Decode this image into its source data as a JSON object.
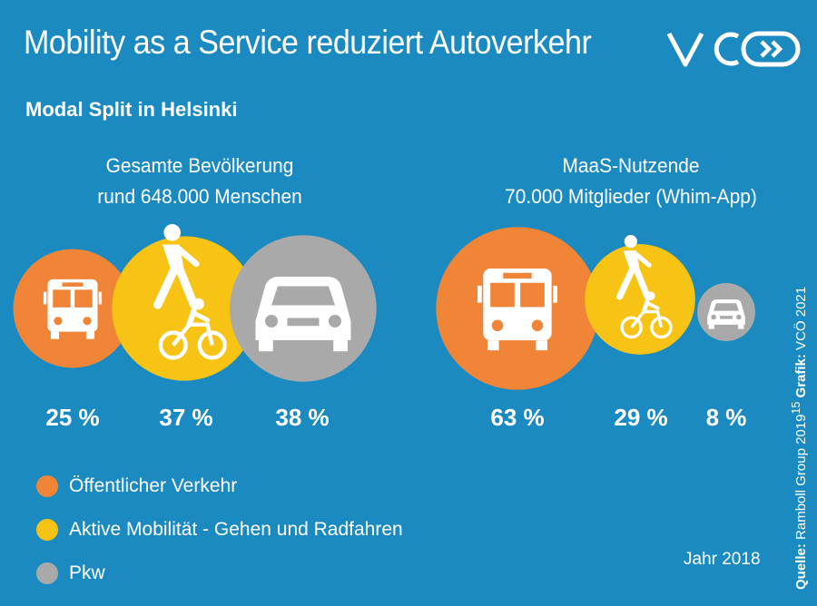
{
  "title": "Mobility as a Service reduziert Autoverkehr",
  "subtitle": "Modal Split in Helsinki",
  "colors": {
    "background": "#1a8ac0",
    "oeffentlich": "#f08537",
    "aktiv": "#f7c314",
    "pkw": "#a9a9a9"
  },
  "chart_data": [
    {
      "type": "bubble",
      "title": "Gesamte Bevölkerung",
      "subtitle": "rund 648.000 Menschen",
      "categories": [
        "Öffentlicher Verkehr",
        "Aktive Mobilität - Gehen und Radfahren",
        "Pkw"
      ],
      "values": [
        25,
        37,
        38
      ],
      "labels": [
        "25 %",
        "37 %",
        "38 %"
      ],
      "icons": [
        "bus-icon",
        "walk-bike-icon",
        "car-icon"
      ]
    },
    {
      "type": "bubble",
      "title": "MaaS-Nutzende",
      "subtitle": "70.000 Mitglieder (Whim-App)",
      "categories": [
        "Öffentlicher Verkehr",
        "Aktive Mobilität - Gehen und Radfahren",
        "Pkw"
      ],
      "values": [
        63,
        29,
        8
      ],
      "labels": [
        "63 %",
        "29 %",
        "8 %"
      ],
      "icons": [
        "bus-icon",
        "walk-bike-icon",
        "car-icon"
      ]
    }
  ],
  "legend": [
    {
      "label": "Öffentlicher Verkehr",
      "color": "#f08537"
    },
    {
      "label": "Aktive Mobilität - Gehen und Radfahren",
      "color": "#f7c314"
    },
    {
      "label": "Pkw",
      "color": "#a9a9a9"
    }
  ],
  "year": "Jahr 2018",
  "source": {
    "label1": "Quelle:",
    "text1": "Ramboll Group 2019",
    "footnote": "15",
    "label2": "Grafik:",
    "text2": "VCÖ 2021"
  },
  "logo_text": "VCÖ"
}
